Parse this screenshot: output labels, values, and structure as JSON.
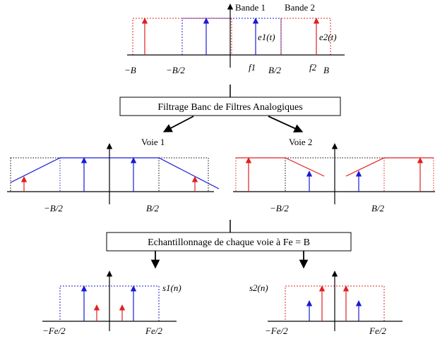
{
  "colors": {
    "blue": "#1a1ad6",
    "red": "#e02020",
    "black": "#000000"
  },
  "top": {
    "band1_label": "Bande 1",
    "band2_label": "Bande 2",
    "e1_label": "e1(t)",
    "e2_label": "e2(t)",
    "x_labels": [
      "−B",
      "−B/2",
      "f1",
      "B/2",
      "f2",
      "B"
    ]
  },
  "filter_box_label": "Filtrage Banc de Filtres Analogiques",
  "voie1_label": "Voie 1",
  "voie2_label": "Voie 2",
  "mid_x_labels": [
    "−B/2",
    "B/2",
    "−B/2",
    "B/2"
  ],
  "sampling_box_label": "Echantillonnage de chaque voie à Fe = B",
  "bottom": {
    "s1_label": "s1(n)",
    "s2_label": "s2(n)",
    "x_labels": [
      "−Fe/2",
      "Fe/2",
      "−Fe/2",
      "Fe/2"
    ]
  }
}
